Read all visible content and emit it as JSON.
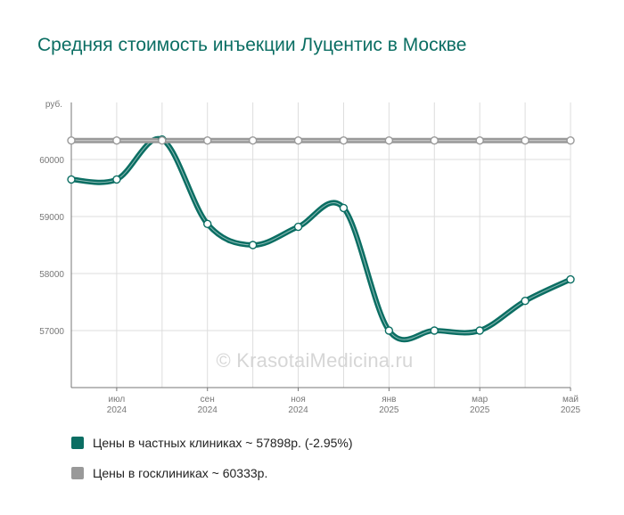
{
  "page": {
    "title": "Средняя стоимость инъекции Луцентис в Москве",
    "watermark": "© KrasotaiMedicina.ru",
    "y_unit_label": "руб.",
    "colors": {
      "title": "#0b6e63",
      "private_series": "#0b6e63",
      "public_series": "#999999",
      "grid": "#dddddd",
      "axis": "#777777",
      "background": "#ffffff"
    }
  },
  "chart_data": {
    "type": "line",
    "title": "Средняя стоимость инъекции Луцентис в Москве",
    "xlabel": "",
    "ylabel": "руб.",
    "x": [
      "2024-06",
      "2024-07",
      "2024-08",
      "2024-09",
      "2024-10",
      "2024-11",
      "2024-12",
      "2025-01",
      "2025-02",
      "2025-03",
      "2025-04",
      "2025-05"
    ],
    "x_tick_labels": [
      {
        "index": 1,
        "month": "июл",
        "year": "2024"
      },
      {
        "index": 3,
        "month": "сен",
        "year": "2024"
      },
      {
        "index": 5,
        "month": "ноя",
        "year": "2024"
      },
      {
        "index": 7,
        "month": "янв",
        "year": "2025"
      },
      {
        "index": 9,
        "month": "мар",
        "year": "2025"
      },
      {
        "index": 11,
        "month": "май",
        "year": "2025"
      }
    ],
    "y_ticks": [
      57000,
      58000,
      59000,
      60000
    ],
    "ylim": [
      56000,
      61000
    ],
    "grid": true,
    "legend_position": "bottom",
    "series": [
      {
        "name": "Цены в частных клиниках ~ 57898р. (-2.95%)",
        "key": "private",
        "color": "#0b6e63",
        "values": [
          59650,
          59650,
          60350,
          58870,
          58500,
          58820,
          59150,
          57000,
          57000,
          57000,
          57520,
          57898
        ]
      },
      {
        "name": "Цены в госклиниках ~ 60333р.",
        "key": "public",
        "color": "#999999",
        "values": [
          60333,
          60333,
          60333,
          60333,
          60333,
          60333,
          60333,
          60333,
          60333,
          60333,
          60333,
          60333
        ]
      }
    ]
  },
  "legend": {
    "items": [
      {
        "label": "Цены в частных клиниках ~ 57898р. (-2.95%)",
        "color": "#0b6e63"
      },
      {
        "label": "Цены в госклиниках ~ 60333р.",
        "color": "#999999"
      }
    ]
  }
}
